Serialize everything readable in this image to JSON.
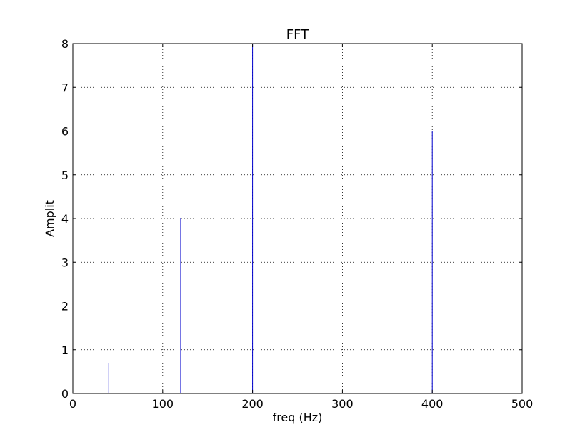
{
  "chart_data": {
    "type": "line",
    "title": "FFT",
    "xlabel": "freq (Hz)",
    "ylabel": "Amplit",
    "xlim": [
      0,
      500
    ],
    "ylim": [
      0,
      8
    ],
    "xticks": [
      0,
      100,
      200,
      300,
      400,
      500
    ],
    "yticks": [
      0,
      1,
      2,
      3,
      4,
      5,
      6,
      7,
      8
    ],
    "grid": true,
    "series": [
      {
        "color": "#0000cc",
        "x": [
          0,
          40,
          40,
          40,
          120,
          120,
          120,
          200,
          200,
          200,
          400,
          400,
          400,
          500
        ],
        "y": [
          0,
          0,
          0.7,
          0,
          0,
          4,
          0,
          0,
          8,
          0,
          0,
          6,
          0,
          0
        ]
      }
    ]
  }
}
